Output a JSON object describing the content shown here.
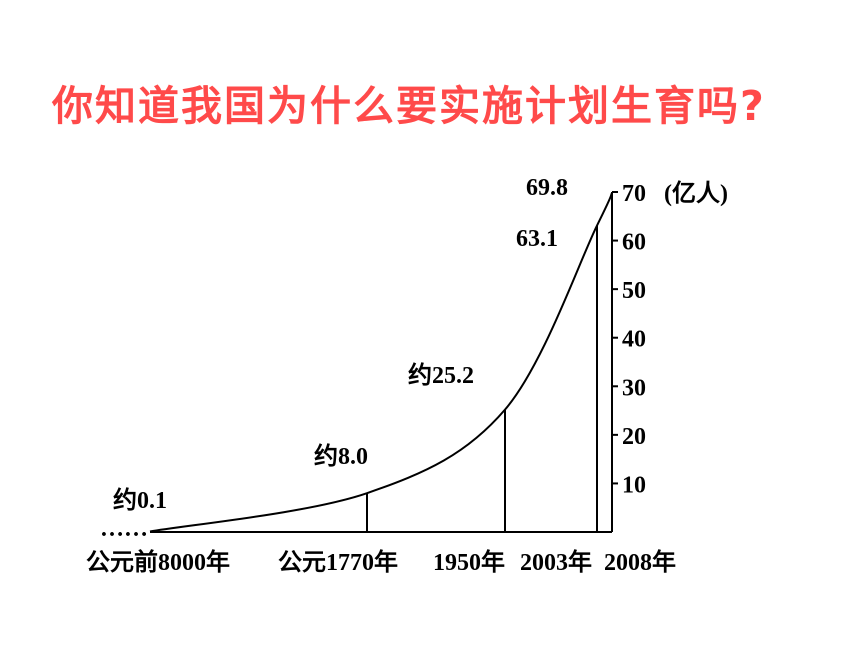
{
  "title": "你知道我国为什么要实施计划生育吗?",
  "colors": {
    "title": "#ff4a4a",
    "ink": "#000000",
    "background": "#ffffff"
  },
  "chart_data": {
    "type": "line",
    "title": "",
    "xlabel": "",
    "ylabel": "",
    "y_unit": "(亿人)",
    "ylim": [
      0,
      70
    ],
    "y_ticks": [
      10,
      20,
      30,
      40,
      50,
      60,
      70
    ],
    "x_tick_labels": [
      "公元前8000年",
      "公元1770年",
      "1950年",
      "2003年",
      "2008年"
    ],
    "leading_dots": "……",
    "points": [
      {
        "label": "约0.1",
        "value": 0.1
      },
      {
        "label": "约8.0",
        "value": 8.0
      },
      {
        "label": "约25.2",
        "value": 25.2
      },
      {
        "label": "63.1",
        "value": 63.1
      },
      {
        "label": "69.8",
        "value": 69.8
      }
    ],
    "grid": false,
    "legend": "none"
  }
}
